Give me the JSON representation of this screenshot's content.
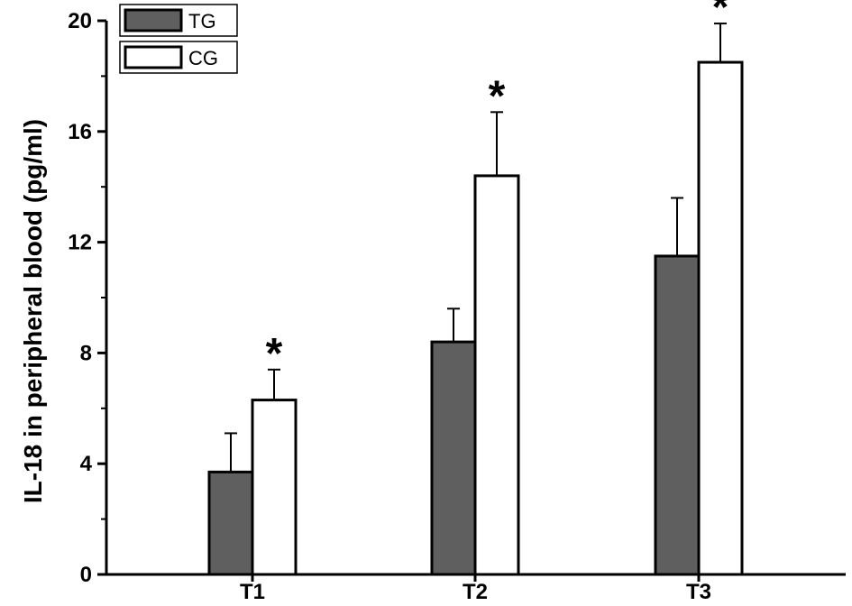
{
  "chart_data": {
    "type": "bar",
    "title": "",
    "xlabel": "",
    "ylabel": "IL-18 in peripheral blood (pg/ml)",
    "ylim": [
      0,
      20
    ],
    "yticks": [
      0,
      4,
      8,
      12,
      16,
      20
    ],
    "categories": [
      "T1",
      "T2",
      "T3"
    ],
    "series": [
      {
        "name": "TG",
        "values": [
          3.7,
          8.4,
          11.5
        ],
        "errors": [
          1.4,
          1.2,
          2.1
        ],
        "color": "#5f5f5f"
      },
      {
        "name": "CG",
        "values": [
          6.3,
          14.4,
          18.5
        ],
        "errors": [
          1.1,
          2.3,
          1.4
        ],
        "color": "#ffffff"
      }
    ],
    "annotations": [
      "*",
      "*",
      "*"
    ],
    "legend": "top-left",
    "grid": false
  }
}
